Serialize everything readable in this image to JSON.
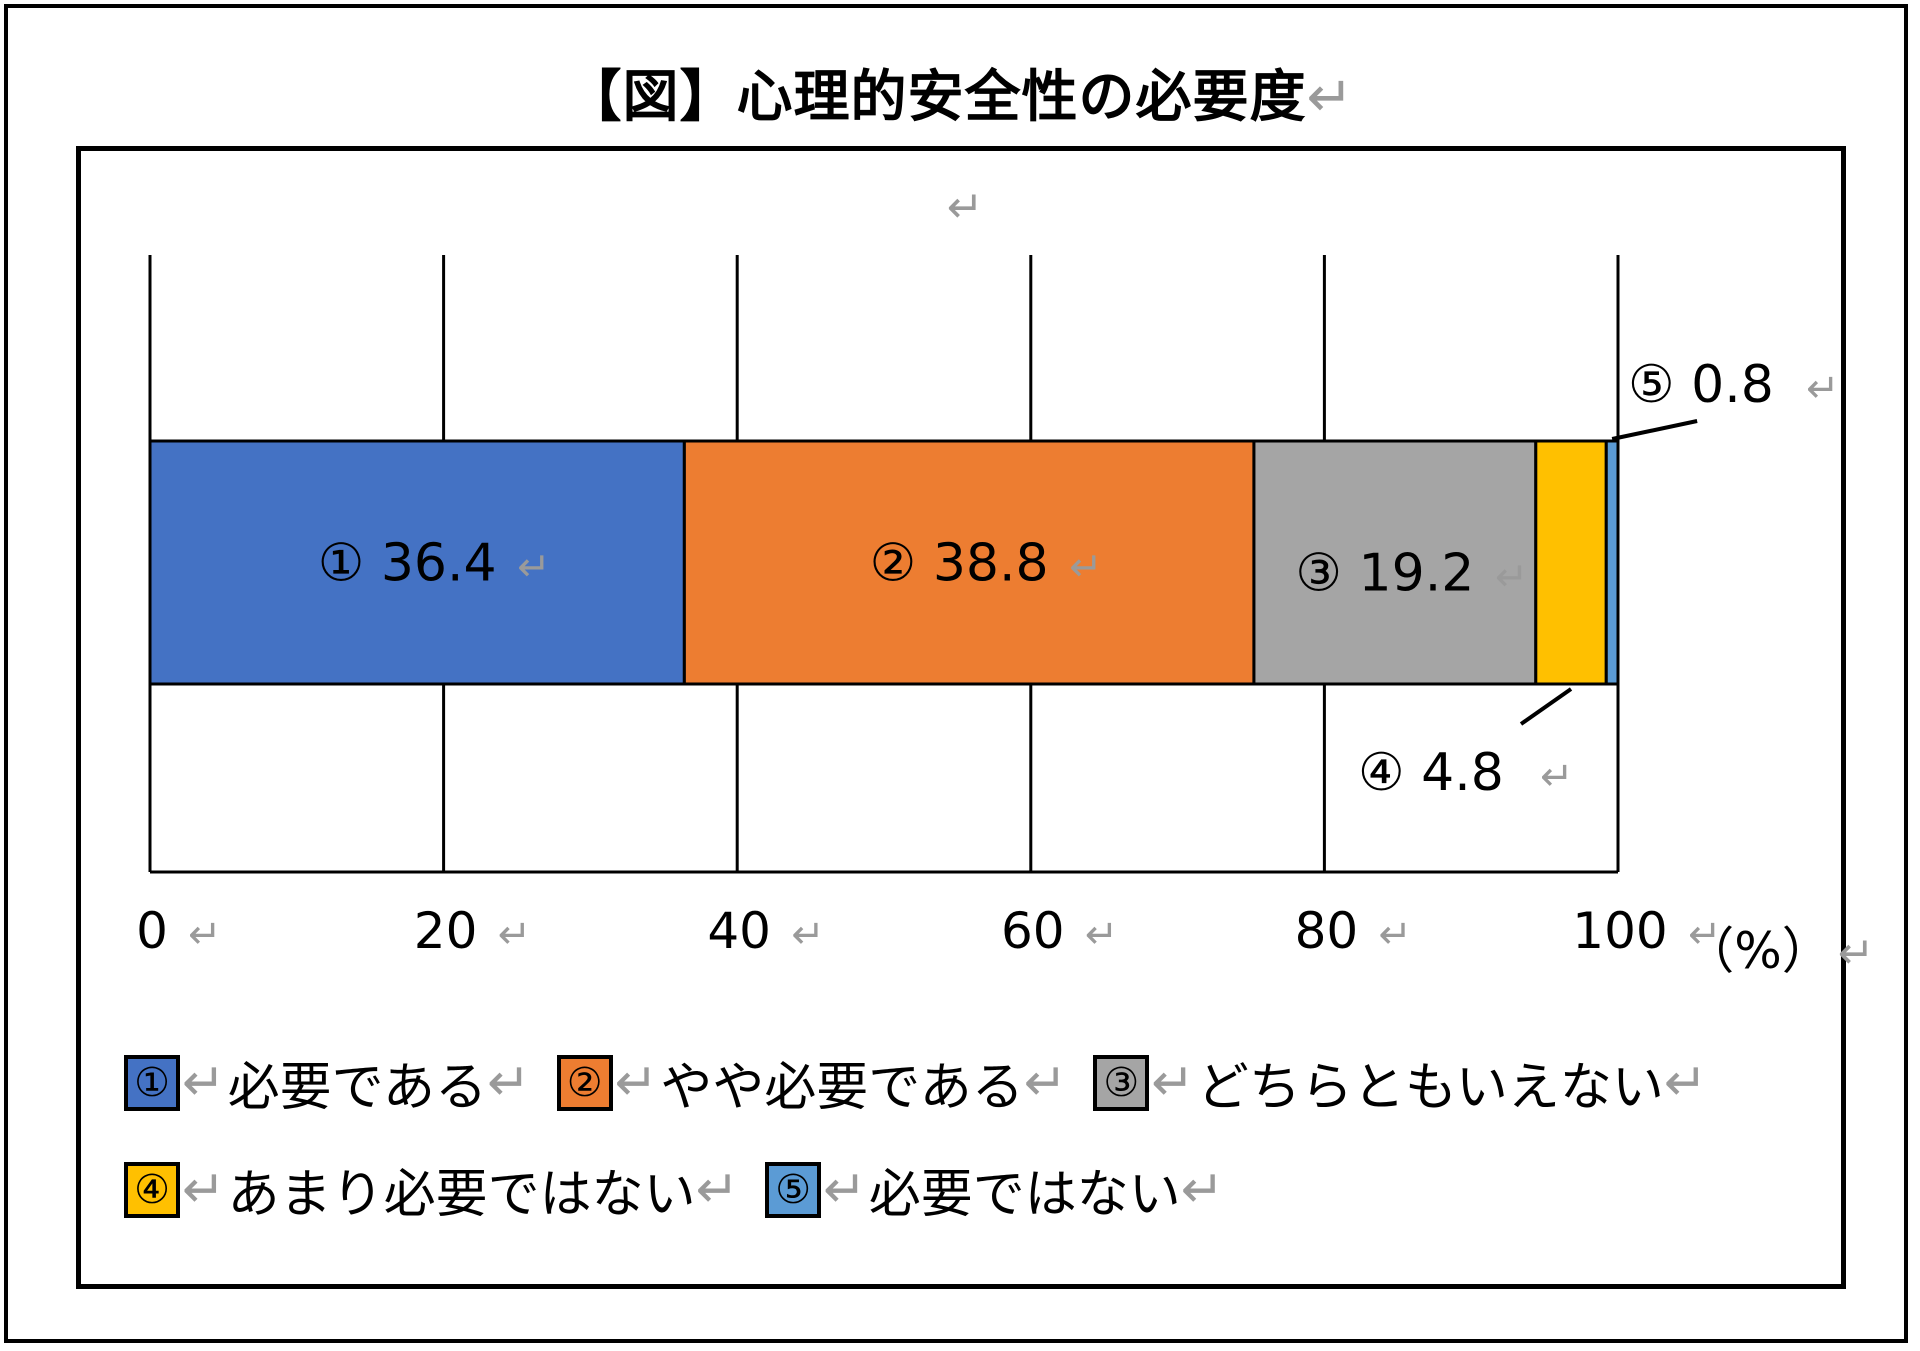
{
  "title": "【図】心理的安全性の必要度",
  "return_mark": "↵",
  "unit_label": "（%）",
  "colors": {
    "s1": "#4472C4",
    "s2": "#ED7D31",
    "s3": "#A5A5A5",
    "s4": "#FFC000",
    "s5": "#5B9BD5"
  },
  "chart_data": {
    "type": "bar",
    "orientation": "horizontal-stacked",
    "xlim": [
      0,
      100
    ],
    "ticks": [
      "0",
      "20",
      "40",
      "60",
      "80",
      "100"
    ],
    "tick_values": [
      0,
      20,
      40,
      60,
      80,
      100
    ],
    "grid": true,
    "series": [
      {
        "name": "必要である",
        "value": 36.4,
        "data_label": "① 36.4",
        "marker": "①"
      },
      {
        "name": "やや必要である",
        "value": 38.8,
        "data_label": "② 38.8",
        "marker": "②"
      },
      {
        "name": "どちらともいえない",
        "value": 19.2,
        "data_label": "③ 19.2",
        "marker": "③"
      },
      {
        "name": "あまり必要ではない",
        "value": 4.8,
        "data_label": "④ 4.8",
        "marker": "④"
      },
      {
        "name": "必要ではない",
        "value": 0.8,
        "data_label": "⑤ 0.8",
        "marker": "⑤"
      }
    ],
    "legend": "bottom"
  }
}
